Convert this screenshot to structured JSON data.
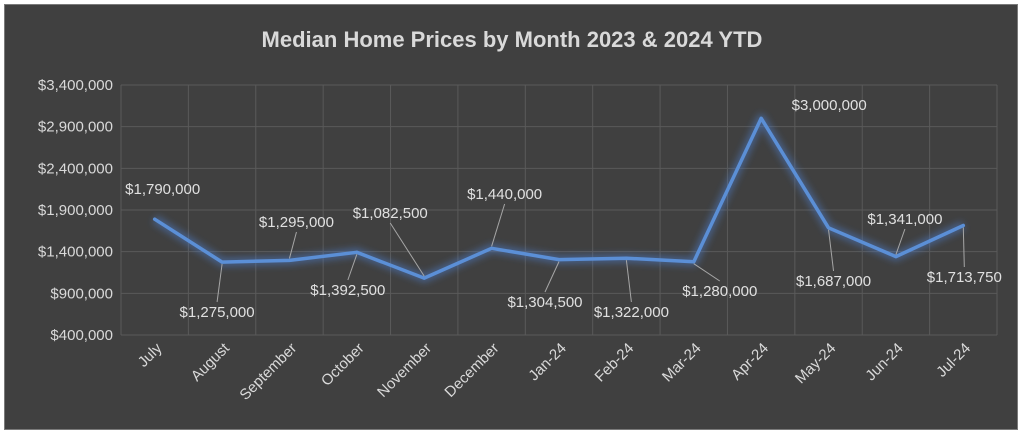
{
  "chart_data": {
    "type": "line",
    "title": "Median Home Prices by Month 2023 & 2024 YTD",
    "xlabel": "",
    "ylabel": "",
    "ylim": [
      400000,
      3400000
    ],
    "y_ticks": [
      "$400,000",
      "$900,000",
      "$1,400,000",
      "$1,900,000",
      "$2,400,000",
      "$2,900,000",
      "$3,400,000"
    ],
    "y_tick_values": [
      400000,
      900000,
      1400000,
      1900000,
      2400000,
      2900000,
      3400000
    ],
    "categories": [
      "July",
      "August",
      "September",
      "October",
      "November",
      "December",
      "Jan-24",
      "Feb-24",
      "Mar-24",
      "Apr-24",
      "May-24",
      "Jun-24",
      "Jul-24"
    ],
    "series": [
      {
        "values": [
          1790000,
          1275000,
          1295000,
          1392500,
          1082500,
          1440000,
          1304500,
          1322000,
          1280000,
          3000000,
          1687000,
          1341000,
          1713750
        ],
        "labels": [
          "$1,790,000",
          "$1,275,000",
          "$1,295,000",
          "$1,392,500",
          "$1,082,500",
          "$1,440,000",
          "$1,304,500",
          "$1,322,000",
          "$1,280,000",
          "$3,000,000",
          "$1,687,000",
          "$1,341,000",
          "$1,713,750"
        ]
      }
    ],
    "grid": true,
    "legend": "none",
    "colors": {
      "background": "#404040",
      "line": "#5b8fd6",
      "glow": "#4a78c0",
      "text": "#d9d9d9",
      "grid": "#5a5a5a"
    }
  }
}
